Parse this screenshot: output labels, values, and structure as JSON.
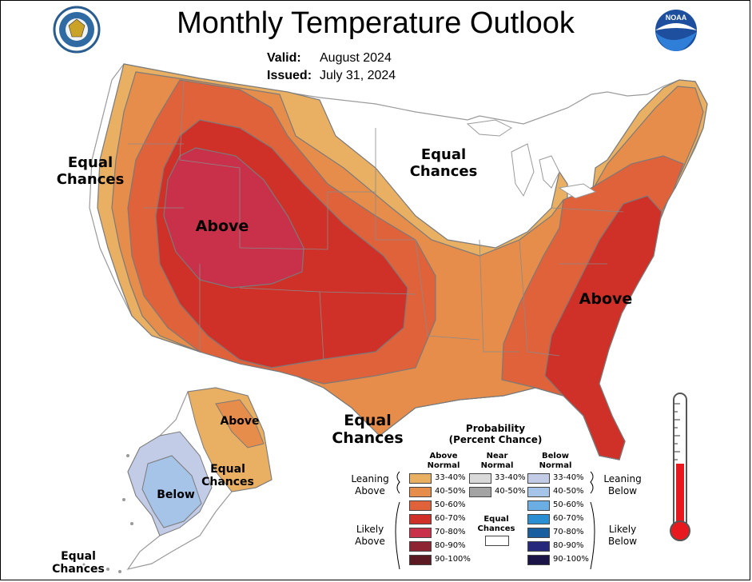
{
  "header": {
    "title": "Monthly Temperature Outlook",
    "valid_label": "Valid:",
    "valid_value": "August 2024",
    "issued_label": "Issued:",
    "issued_value": "July 31, 2024"
  },
  "logos": {
    "left": "seal-icon",
    "right": "noaa-logo-icon",
    "right_text": "NOAA"
  },
  "map_labels": {
    "west_equal": [
      "Equal",
      "Chances"
    ],
    "north_equal": [
      "Equal",
      "Chances"
    ],
    "west_above": "Above",
    "east_above": "Above",
    "gulf_equal": [
      "Equal",
      "Chances"
    ],
    "alaska_above": "Above",
    "alaska_equal": [
      "Equal",
      "Chances"
    ],
    "alaska_below": "Below",
    "alaska_sw_equal": [
      "Equal",
      "Chances"
    ]
  },
  "legend": {
    "title": [
      "Probability",
      "(Percent Chance)"
    ],
    "col_above": [
      "Above",
      "Normal"
    ],
    "col_near": [
      "Near",
      "Normal"
    ],
    "col_below": [
      "Below",
      "Normal"
    ],
    "above": [
      {
        "label": "33-40%",
        "color": "#e9b064"
      },
      {
        "label": "40-50%",
        "color": "#e68d4b"
      },
      {
        "label": "50-60%",
        "color": "#e0623a"
      },
      {
        "label": "60-70%",
        "color": "#cf3128"
      },
      {
        "label": "70-80%",
        "color": "#c9304a"
      },
      {
        "label": "80-90%",
        "color": "#8d2431"
      },
      {
        "label": "90-100%",
        "color": "#5b1a21"
      }
    ],
    "near": [
      {
        "label": "33-40%",
        "color": "#d9d9d9"
      },
      {
        "label": "40-50%",
        "color": "#a3a3a3"
      }
    ],
    "equal_label": [
      "Equal",
      "Chances"
    ],
    "below": [
      {
        "label": "33-40%",
        "color": "#c2cce6"
      },
      {
        "label": "40-50%",
        "color": "#a6c3e8"
      },
      {
        "label": "50-60%",
        "color": "#6aaee3"
      },
      {
        "label": "60-70%",
        "color": "#2a8ed2"
      },
      {
        "label": "70-80%",
        "color": "#195e9e"
      },
      {
        "label": "80-90%",
        "color": "#26287c"
      },
      {
        "label": "90-100%",
        "color": "#1b1447"
      }
    ],
    "leaning_above": [
      "Leaning",
      "Above"
    ],
    "likely_above": [
      "Likely",
      "Above"
    ],
    "leaning_below": [
      "Leaning",
      "Below"
    ],
    "likely_below": [
      "Likely",
      "Below"
    ]
  },
  "thermometer": {
    "icon": "thermometer-icon",
    "fill_fraction": 0.5,
    "color": "#e8191e"
  }
}
